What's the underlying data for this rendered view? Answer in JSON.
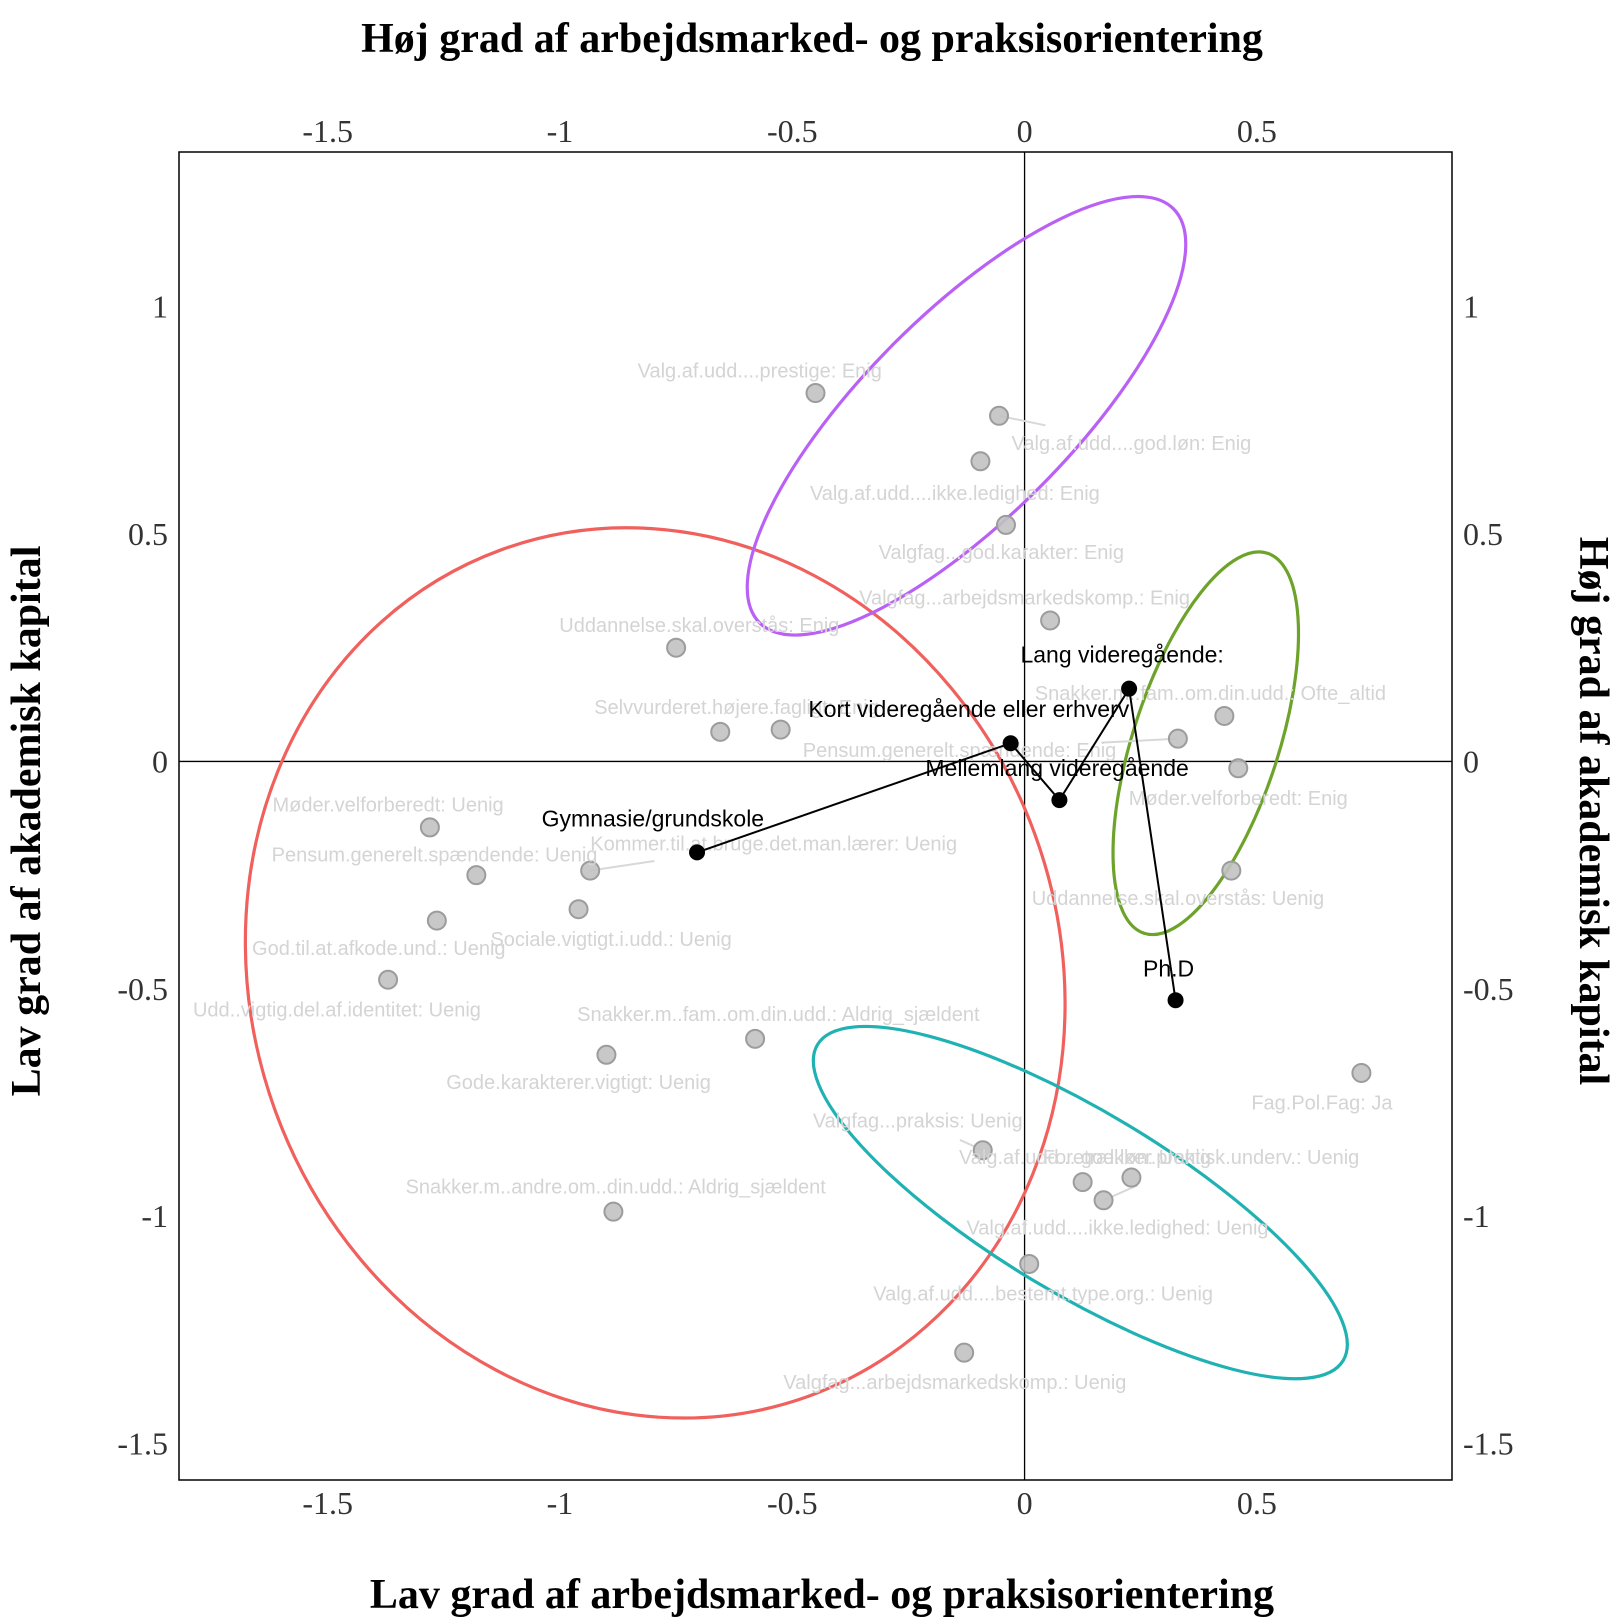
{
  "chart_data": {
    "type": "scatter",
    "axis_titles": {
      "top": "Høj grad af arbejdsmarked- og praksisorientering",
      "bottom": "Lav grad af arbejdsmarked- og praksisorientering",
      "left": "Lav grad af akademisk kapital",
      "right": "Høj grad af akademisk kapital"
    },
    "xlim": [
      -1.82,
      0.92
    ],
    "ylim": [
      -1.58,
      1.34
    ],
    "x_ticks": [
      {
        "value": -1.5,
        "label": "-1.5"
      },
      {
        "value": -1.0,
        "label": "-1"
      },
      {
        "value": -0.5,
        "label": "-0.5"
      },
      {
        "value": 0.0,
        "label": "0"
      },
      {
        "value": 0.5,
        "label": "0.5"
      }
    ],
    "y_ticks": [
      {
        "value": 1.0,
        "label": "1"
      },
      {
        "value": 0.5,
        "label": "0.5"
      },
      {
        "value": 0.0,
        "label": "0"
      },
      {
        "value": -0.5,
        "label": "-0.5"
      },
      {
        "value": -1.0,
        "label": "-1"
      },
      {
        "value": -1.5,
        "label": "-1.5"
      }
    ],
    "grid": false,
    "reference_lines": {
      "x": 0,
      "y": 0
    },
    "points": [
      {
        "x": -0.45,
        "y": 0.81,
        "label": "Valg.af.udd....prestige: Enig",
        "lx": -0.57,
        "ly": 0.86
      },
      {
        "x": -0.055,
        "y": 0.76,
        "label": "Valg.af.udd....god.løn: Enig",
        "lx": 0.23,
        "ly": 0.7
      },
      {
        "x": -0.095,
        "y": 0.66,
        "label": "Valg.af.udd....ikke.ledighed: Enig",
        "lx": -0.15,
        "ly": 0.59
      },
      {
        "x": -0.04,
        "y": 0.52,
        "label": "Valgfag...god.karakter: Enig",
        "lx": -0.05,
        "ly": 0.46
      },
      {
        "x": 0.055,
        "y": 0.31,
        "label": "Valgfag...arbejdsmarkedskomp.: Enig",
        "lx": 0.0,
        "ly": 0.36
      },
      {
        "x": -0.75,
        "y": 0.25,
        "label": "Uddannelse.skal.overstås: Enig",
        "lx": -0.7,
        "ly": 0.3
      },
      {
        "x": -0.655,
        "y": 0.065,
        "label": "Selvvurderet.højere.fagligt: Enig",
        "lx": -0.62,
        "ly": 0.12
      },
      {
        "x": -0.525,
        "y": 0.07,
        "label": "Selvvurderet.højere.fagligt: Enig",
        "lx": null,
        "ly": null
      },
      {
        "x": 0.43,
        "y": 0.1,
        "label": "Snakker.m..fam..om.din.udd.: Ofte_altid",
        "lx": 0.4,
        "ly": 0.15
      },
      {
        "x": 0.33,
        "y": 0.05,
        "label": "Pensum.generelt.spændende: Enig",
        "lx": -0.14,
        "ly": 0.025
      },
      {
        "x": 0.46,
        "y": -0.015,
        "label": "Møder.velforberedt: Enig",
        "lx": 0.46,
        "ly": -0.08
      },
      {
        "x": 0.445,
        "y": -0.24,
        "label": "Uddannelse.skal.overstås: Uenig",
        "lx": 0.33,
        "ly": -0.3
      },
      {
        "x": -1.28,
        "y": -0.145,
        "label": "Møder.velforberedt: Uenig",
        "lx": -1.37,
        "ly": -0.095
      },
      {
        "x": -1.18,
        "y": -0.25,
        "label": "Pensum.generelt.spændende: Uenig",
        "lx": -1.27,
        "ly": -0.205
      },
      {
        "x": -1.265,
        "y": -0.35,
        "label": "God.til.at.afkode.und.: Uenig",
        "lx": -1.39,
        "ly": -0.41
      },
      {
        "x": -0.935,
        "y": -0.24,
        "label": "Kommer.til.at.bruge.det.man.lærer: Uenig",
        "lx": -0.54,
        "ly": -0.18
      },
      {
        "x": -0.96,
        "y": -0.325,
        "label": "Sociale.vigtigt.i.udd.: Uenig",
        "lx": -0.89,
        "ly": -0.39
      },
      {
        "x": -1.37,
        "y": -0.48,
        "label": "Udd..vigtig.del.af.identitet: Uenig",
        "lx": -1.48,
        "ly": -0.545
      },
      {
        "x": -0.58,
        "y": -0.61,
        "label": "Snakker.m..fam..om.din.udd.: Aldrig_sjældent",
        "lx": -0.53,
        "ly": -0.555
      },
      {
        "x": -0.9,
        "y": -0.645,
        "label": "Gode.karakterer.vigtigt: Uenig",
        "lx": -0.96,
        "ly": -0.705
      },
      {
        "x": -0.885,
        "y": -0.99,
        "label": "Snakker.m..andre.om..din.udd.: Aldrig_sjældent",
        "lx": -0.88,
        "ly": -0.935
      },
      {
        "x": 0.725,
        "y": -0.685,
        "label": "Fag.Pol.Fag: Ja",
        "lx": 0.64,
        "ly": -0.75
      },
      {
        "x": -0.09,
        "y": -0.855,
        "label": "Valgfag...praksis: Uenig",
        "lx": -0.23,
        "ly": -0.79
      },
      {
        "x": 0.125,
        "y": -0.925,
        "label": "Valg.af.udd....god.løn: Uenig",
        "lx": 0.13,
        "ly": -0.87
      },
      {
        "x": 0.17,
        "y": -0.965,
        "label": "Foretrækker.praktisk.underv.: Uenig",
        "lx": 0.38,
        "ly": -0.87
      },
      {
        "x": 0.23,
        "y": -0.915,
        "label": "Valg.af.udd....ikke.ledighed: Uenig",
        "lx": 0.2,
        "ly": -1.025
      },
      {
        "x": 0.01,
        "y": -1.105,
        "label": "Valg.af.udd....bestemt.type.org.: Uenig",
        "lx": 0.04,
        "ly": -1.17
      },
      {
        "x": -0.13,
        "y": -1.3,
        "label": "Valgfag...arbejdsmarkedskomp.: Uenig",
        "lx": -0.15,
        "ly": -1.365
      }
    ],
    "groups": [
      {
        "name": "Gymnasie/grundskole",
        "x": -0.705,
        "y": -0.2,
        "lx": -0.8,
        "ly": -0.125
      },
      {
        "name": "Kort videregående eller erhverv",
        "x": -0.03,
        "y": 0.04,
        "lx": -0.12,
        "ly": 0.115
      },
      {
        "name": "Mellemlang videregående",
        "x": 0.075,
        "y": -0.085,
        "lx": 0.07,
        "ly": -0.015
      },
      {
        "name": "Lang videregående:",
        "x": 0.225,
        "y": 0.16,
        "lx": 0.21,
        "ly": 0.235
      },
      {
        "name": "Ph.D",
        "x": 0.325,
        "y": -0.525,
        "lx": 0.31,
        "ly": -0.455
      }
    ],
    "group_path_order": [
      0,
      1,
      2,
      3,
      4
    ],
    "ellipses": [
      {
        "color": "#F0605D",
        "cx": -0.795,
        "cy": -0.465,
        "rx": 0.87,
        "ry": 0.99,
        "angle": -20
      },
      {
        "color": "#BA61F5",
        "cx": -0.125,
        "cy": 0.76,
        "rx": 0.63,
        "ry": 0.225,
        "angle": -45
      },
      {
        "color": "#6DA32A",
        "cx": 0.39,
        "cy": 0.04,
        "rx": 0.43,
        "ry": 0.16,
        "angle": -72
      },
      {
        "color": "#20B2B2",
        "cx": 0.12,
        "cy": -0.97,
        "rx": 0.66,
        "ry": 0.2,
        "angle": 31
      }
    ]
  }
}
